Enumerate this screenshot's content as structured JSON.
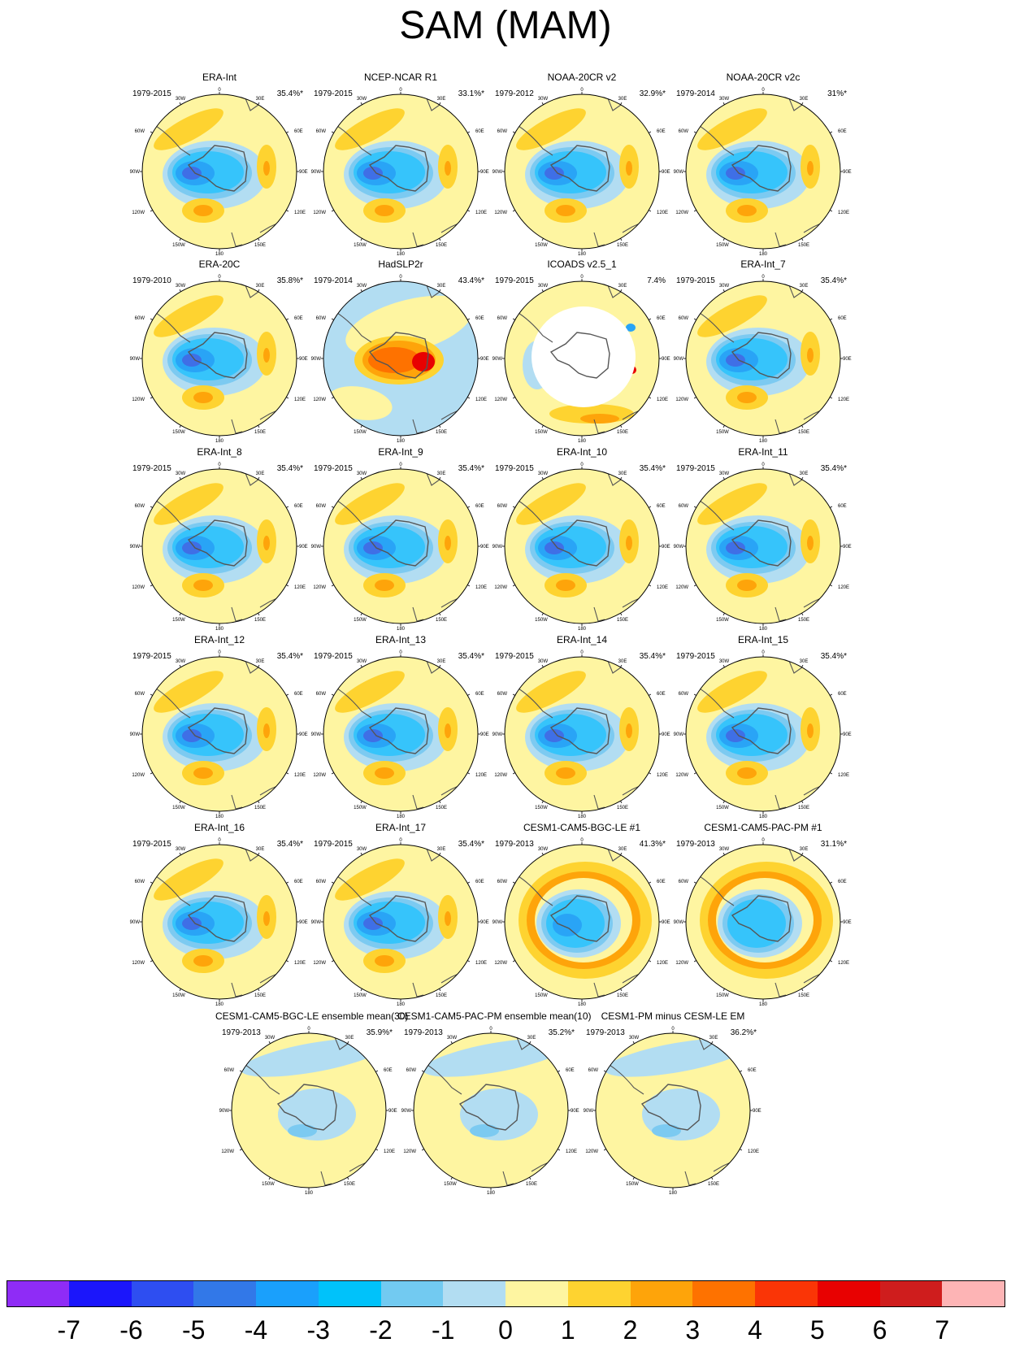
{
  "title": "SAM (MAM)",
  "colors": {
    "background": "#ffffff",
    "coast": "#555555",
    "ocean_missing": "#ffffff"
  },
  "chart_data": {
    "type": "heatmap",
    "title": "SAM (MAM)",
    "description_kind": "polar stereographic regression maps of sea level pressure",
    "panels": [
      {
        "title": "ERA-Int",
        "period": "1979-2015",
        "variance": "35.4%*",
        "style": "reanalysis"
      },
      {
        "title": "NCEP-NCAR R1",
        "period": "1979-2015",
        "variance": "33.1%*",
        "style": "reanalysis"
      },
      {
        "title": "NOAA-20CR v2",
        "period": "1979-2012",
        "variance": "32.9%*",
        "style": "reanalysis"
      },
      {
        "title": "NOAA-20CR v2c",
        "period": "1979-2014",
        "variance": "31%*",
        "style": "reanalysis"
      },
      {
        "title": "ERA-20C",
        "period": "1979-2010",
        "variance": "35.8%*",
        "style": "reanalysis"
      },
      {
        "title": "HadSLP2r",
        "period": "1979-2014",
        "variance": "43.4%*",
        "style": "hadslp"
      },
      {
        "title": "ICOADS v2.5_1",
        "period": "1979-2015",
        "variance": "7.4%",
        "style": "icoads"
      },
      {
        "title": "ERA-Int_7",
        "period": "1979-2015",
        "variance": "35.4%*",
        "style": "reanalysis"
      },
      {
        "title": "ERA-Int_8",
        "period": "1979-2015",
        "variance": "35.4%*",
        "style": "reanalysis"
      },
      {
        "title": "ERA-Int_9",
        "period": "1979-2015",
        "variance": "35.4%*",
        "style": "reanalysis"
      },
      {
        "title": "ERA-Int_10",
        "period": "1979-2015",
        "variance": "35.4%*",
        "style": "reanalysis"
      },
      {
        "title": "ERA-Int_11",
        "period": "1979-2015",
        "variance": "35.4%*",
        "style": "reanalysis"
      },
      {
        "title": "ERA-Int_12",
        "period": "1979-2015",
        "variance": "35.4%*",
        "style": "reanalysis"
      },
      {
        "title": "ERA-Int_13",
        "period": "1979-2015",
        "variance": "35.4%*",
        "style": "reanalysis"
      },
      {
        "title": "ERA-Int_14",
        "period": "1979-2015",
        "variance": "35.4%*",
        "style": "reanalysis"
      },
      {
        "title": "ERA-Int_15",
        "period": "1979-2015",
        "variance": "35.4%*",
        "style": "reanalysis"
      },
      {
        "title": "ERA-Int_16",
        "period": "1979-2015",
        "variance": "35.4%*",
        "style": "reanalysis"
      },
      {
        "title": "ERA-Int_17",
        "period": "1979-2015",
        "variance": "35.4%*",
        "style": "reanalysis"
      },
      {
        "title": "CESM1-CAM5-BGC-LE #1",
        "period": "1979-2013",
        "variance": "41.3%*",
        "style": "model"
      },
      {
        "title": "CESM1-CAM5-PAC-PM #1",
        "period": "1979-2013",
        "variance": "31.1%*",
        "style": "model"
      },
      {
        "title": "CESM1-CAM5-BGC-LE ensemble mean(30)",
        "period": "1979-2013",
        "variance": "35.9%*",
        "style": "ensemble"
      },
      {
        "title": "CESM1-CAM5-PAC-PM ensemble mean(10)",
        "period": "1979-2013",
        "variance": "35.2%*",
        "style": "ensemble"
      },
      {
        "title": "CESM1-PM minus CESM-LE EM",
        "period": "1979-2013",
        "variance": "36.2%*",
        "style": "ensemble"
      }
    ],
    "map_labels": {
      "top": "0",
      "bottom": "180",
      "upper_left": "30W",
      "upper_right": "30E",
      "left_upper": "60W",
      "right_upper": "60E",
      "left_mid": "90W",
      "right_mid": "90E",
      "left_lower": "120W",
      "right_lower": "120E",
      "lower_left": "150W",
      "lower_right": "150E"
    },
    "colorbar": {
      "ticks": [
        "-7",
        "-6",
        "-5",
        "-4",
        "-3",
        "-2",
        "-1",
        "0",
        "1",
        "2",
        "3",
        "4",
        "5",
        "6",
        "7"
      ],
      "colors": [
        "#8f2cf6",
        "#1b16fb",
        "#2e4ef1",
        "#3278e8",
        "#1aa0fc",
        "#00c2fa",
        "#72caf1",
        "#b2ddf2",
        "#fef5a1",
        "#fed330",
        "#fea40a",
        "#fe7200",
        "#fa3506",
        "#e80101",
        "#cf1d1d",
        "#fdb4b5"
      ]
    },
    "palette": {
      "cb_dark": "#3f6fe6",
      "cb_blue": "#29a4f6",
      "cb_cyan": "#36c4fb",
      "cb_light": "#7ccaf1",
      "pale": "#b2ddf2",
      "yellow": "#fef5a1",
      "gold": "#fed330",
      "orange": "#fea40a",
      "red_orange": "#fe7200",
      "red": "#e80101"
    }
  }
}
